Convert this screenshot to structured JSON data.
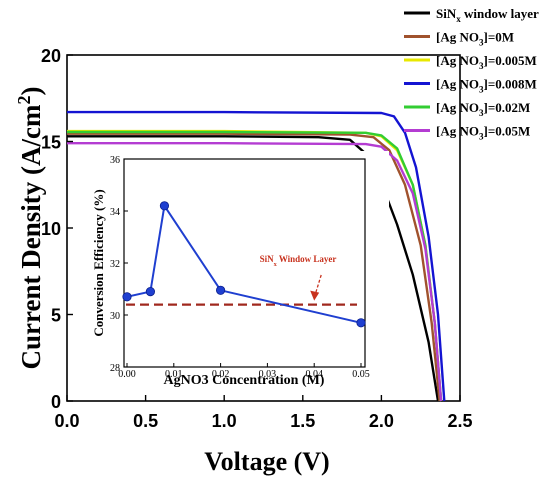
{
  "chart_data": [
    {
      "type": "line",
      "title": "",
      "xlabel": "Voltage (V)",
      "ylabel": "Current Density (A/cm",
      "ylabel_sup": "2",
      "ylabel_end": ")",
      "xlim": [
        0,
        2.5
      ],
      "ylim": [
        0,
        20
      ],
      "x_ticks": [
        0.0,
        0.5,
        1.0,
        1.5,
        2.0,
        2.5
      ],
      "x_tick_labels": [
        "0.0",
        "0.5",
        "1.0",
        "1.5",
        "2.0",
        "2.5"
      ],
      "y_ticks": [
        0,
        5,
        10,
        15,
        20
      ],
      "y_tick_labels": [
        "0",
        "5",
        "10",
        "15",
        "20"
      ],
      "grid": false,
      "legend_position": "top-right, outside plot",
      "series": [
        {
          "legend_parts": [
            {
              "t": "SiN"
            },
            {
              "t": "x",
              "sub": true
            },
            {
              "t": " window layer"
            }
          ],
          "color": "#000000",
          "points": [
            [
              0,
              15.3
            ],
            [
              1.0,
              15.3
            ],
            [
              1.6,
              15.25
            ],
            [
              1.8,
              15.1
            ],
            [
              1.9,
              14.3
            ],
            [
              2.0,
              12.6
            ],
            [
              2.1,
              10.2
            ],
            [
              2.2,
              7.3
            ],
            [
              2.3,
              3.4
            ],
            [
              2.36,
              0
            ]
          ]
        },
        {
          "legend_parts": [
            {
              "t": "[Ag NO"
            },
            {
              "t": "3",
              "sub": true
            },
            {
              "t": "]=0M"
            }
          ],
          "color": "#a0522d",
          "points": [
            [
              0,
              15.45
            ],
            [
              1.0,
              15.45
            ],
            [
              1.8,
              15.4
            ],
            [
              1.95,
              15.25
            ],
            [
              2.05,
              14.5
            ],
            [
              2.15,
              12.5
            ],
            [
              2.25,
              9.0
            ],
            [
              2.32,
              4.5
            ],
            [
              2.37,
              0
            ]
          ]
        },
        {
          "legend_parts": [
            {
              "t": "[Ag NO"
            },
            {
              "t": "3",
              "sub": true
            },
            {
              "t": "]=0.005M"
            }
          ],
          "color": "#e8e800",
          "points": [
            [
              0,
              15.6
            ],
            [
              1.0,
              15.6
            ],
            [
              1.9,
              15.5
            ],
            [
              2.0,
              15.3
            ],
            [
              2.1,
              14.5
            ],
            [
              2.2,
              12.5
            ],
            [
              2.28,
              9.0
            ],
            [
              2.34,
              4.5
            ],
            [
              2.38,
              0
            ]
          ]
        },
        {
          "legend_parts": [
            {
              "t": "[Ag NO"
            },
            {
              "t": "3",
              "sub": true
            },
            {
              "t": "]=0.008M"
            }
          ],
          "color": "#1414d2",
          "points": [
            [
              0,
              16.7
            ],
            [
              1.0,
              16.7
            ],
            [
              2.0,
              16.65
            ],
            [
              2.08,
              16.45
            ],
            [
              2.15,
              15.5
            ],
            [
              2.22,
              13.5
            ],
            [
              2.3,
              9.5
            ],
            [
              2.36,
              5.0
            ],
            [
              2.4,
              0
            ]
          ]
        },
        {
          "legend_parts": [
            {
              "t": "[Ag NO"
            },
            {
              "t": "3",
              "sub": true
            },
            {
              "t": "]=0.02M"
            }
          ],
          "color": "#32cd32",
          "points": [
            [
              0,
              15.55
            ],
            [
              1.0,
              15.55
            ],
            [
              1.9,
              15.5
            ],
            [
              2.0,
              15.35
            ],
            [
              2.1,
              14.6
            ],
            [
              2.2,
              12.5
            ],
            [
              2.28,
              9.0
            ],
            [
              2.34,
              4.5
            ],
            [
              2.38,
              0
            ]
          ]
        },
        {
          "legend_parts": [
            {
              "t": "[Ag NO"
            },
            {
              "t": "3",
              "sub": true
            },
            {
              "t": "]=0.05M"
            }
          ],
          "color": "#b43cd2",
          "points": [
            [
              0,
              14.9
            ],
            [
              1.0,
              14.9
            ],
            [
              1.9,
              14.85
            ],
            [
              2.0,
              14.7
            ],
            [
              2.1,
              13.9
            ],
            [
              2.2,
              12.0
            ],
            [
              2.28,
              8.8
            ],
            [
              2.34,
              4.5
            ],
            [
              2.38,
              0
            ]
          ]
        }
      ]
    },
    {
      "type": "scatter",
      "title": "",
      "xlabel": "AgNO3 Concentration (M)",
      "ylabel": "Conversion Efficiency (%)",
      "xlim": [
        0,
        0.05
      ],
      "ylim": [
        28,
        36
      ],
      "x_ticks": [
        0.0,
        0.01,
        0.02,
        0.03,
        0.04,
        0.05
      ],
      "x_tick_labels": [
        "0.00",
        "0.01",
        "0.02",
        "0.03",
        "0.04",
        "0.05"
      ],
      "y_ticks": [
        28,
        30,
        32,
        34,
        36
      ],
      "y_tick_labels": [
        "28",
        "30",
        "32",
        "34",
        "36"
      ],
      "grid": false,
      "series": [
        {
          "color": "#1f3fd0",
          "x": [
            0.0,
            0.005,
            0.008,
            0.02,
            0.05
          ],
          "y": [
            30.7,
            30.9,
            34.2,
            30.95,
            29.7
          ]
        }
      ],
      "reference_line": {
        "y": 30.4,
        "color": "#a0281e",
        "label_parts": [
          {
            "t": "SiN"
          },
          {
            "t": "x",
            "sub": true
          },
          {
            "t": " Window Layer"
          }
        ],
        "label_color": "#c8321e"
      }
    }
  ]
}
